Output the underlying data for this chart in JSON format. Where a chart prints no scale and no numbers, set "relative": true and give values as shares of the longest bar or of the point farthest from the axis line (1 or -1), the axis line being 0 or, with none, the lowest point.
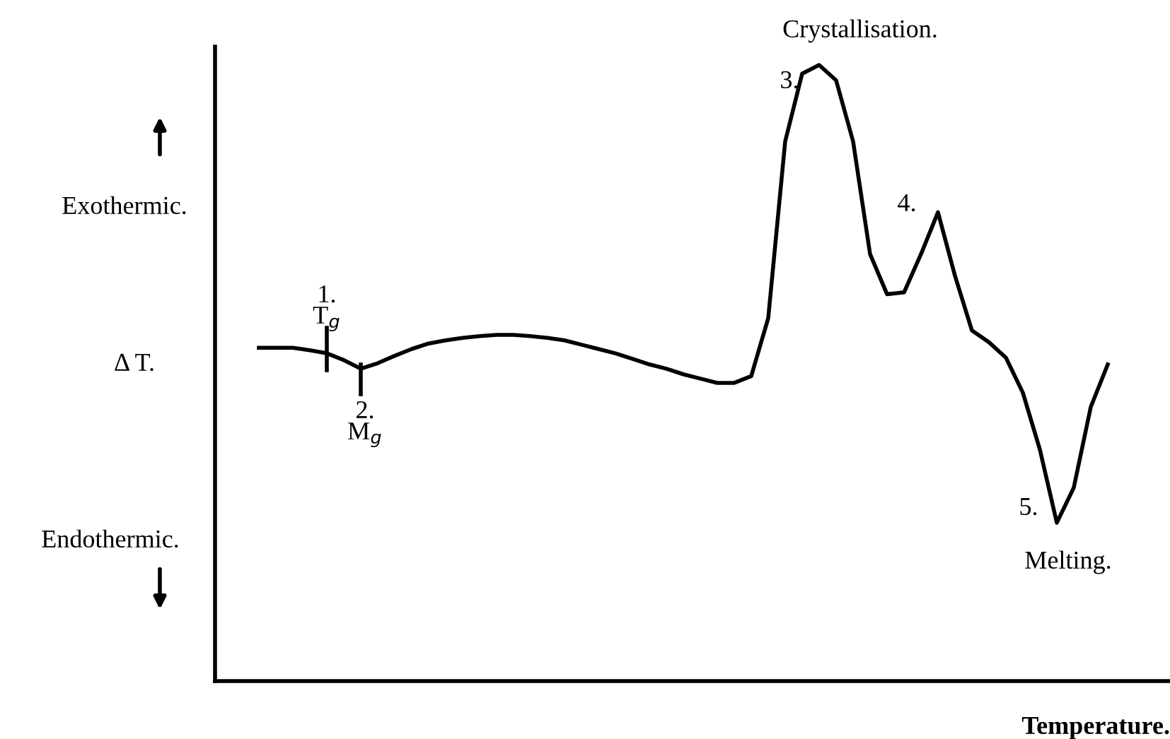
{
  "chart_data": {
    "type": "line",
    "relative": true,
    "xlabel": "Temperature.",
    "ylabel": "Δ T.",
    "categories": [
      null,
      null,
      null,
      null,
      null,
      null,
      null,
      null,
      null,
      null,
      null,
      null,
      null,
      null,
      null,
      null,
      null,
      null,
      null,
      null,
      null,
      null,
      null,
      null,
      null,
      null,
      null,
      null,
      null,
      null,
      null,
      null,
      null,
      null,
      null,
      null,
      null,
      null,
      null,
      null,
      null,
      null,
      null,
      null,
      null,
      null,
      null,
      null,
      null,
      null,
      null
    ],
    "series": [
      {
        "color": "#000000",
        "values": [
          0.541,
          0.541,
          0.541,
          0.537,
          0.532,
          0.521,
          0.507,
          0.516,
          0.528,
          0.539,
          0.548,
          0.553,
          0.557,
          0.56,
          0.562,
          0.562,
          0.56,
          0.557,
          0.553,
          0.546,
          0.539,
          0.532,
          0.523,
          0.514,
          0.507,
          0.498,
          0.491,
          0.484,
          0.484,
          0.495,
          0.589,
          0.876,
          0.986,
          1,
          0.975,
          0.876,
          0.693,
          0.628,
          0.631,
          0.693,
          0.761,
          0.658,
          0.569,
          0.55,
          0.525,
          0.468,
          0.376,
          0.257,
          0.314,
          0.445,
          0.514
        ]
      }
    ],
    "annotations": [
      "Exothermic.",
      "Endothermic.",
      "1.\nT$_{g}$",
      "2.\nM$_{g}$",
      "Crystallisation.",
      "3.",
      "4.",
      "5.",
      "Melting."
    ],
    "grid": false,
    "legend": false,
    "marker": "none",
    "line_style": "solid"
  }
}
